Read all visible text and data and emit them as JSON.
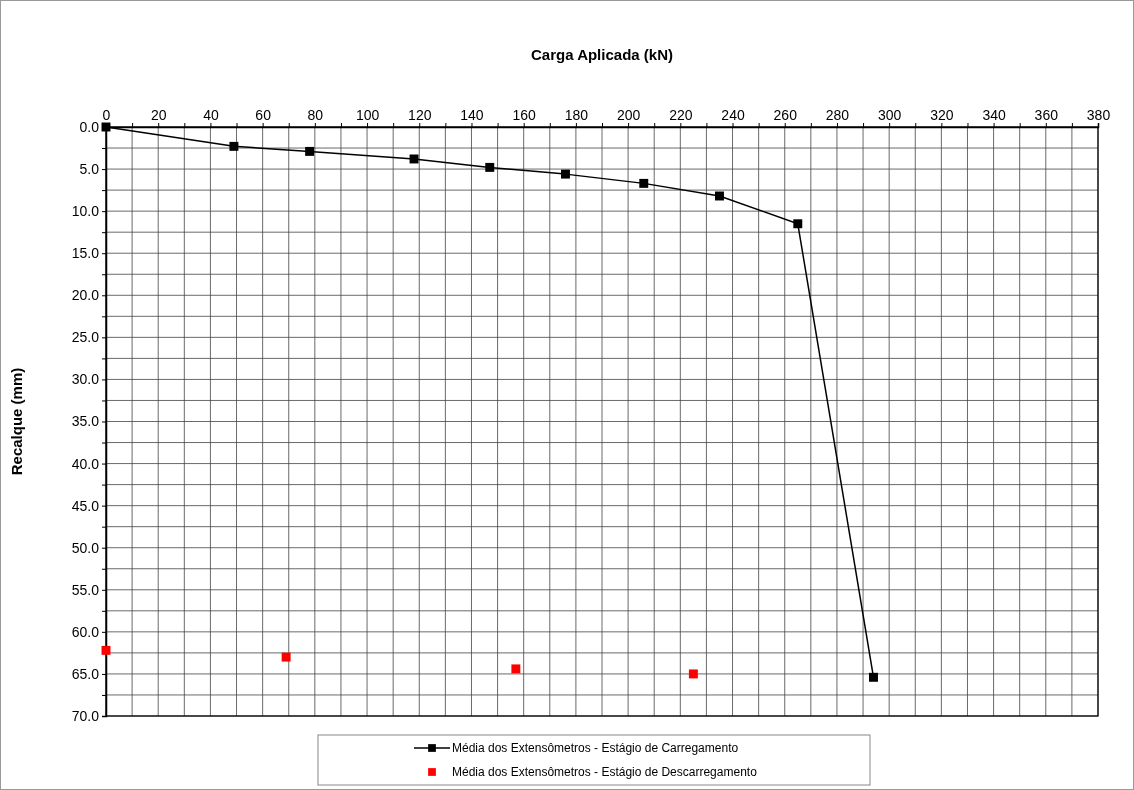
{
  "chart_data": {
    "type": "line",
    "title": "Carga Aplicada (kN)",
    "ylabel": "Recalque (mm)",
    "xlim": [
      0,
      380
    ],
    "ylim": [
      70,
      0
    ],
    "xticks": [
      0,
      {
        "value": 10,
        "label": null
      },
      20,
      {
        "value": 30,
        "label": null
      },
      40,
      {
        "value": 50,
        "label": null
      },
      60,
      {
        "value": 70,
        "label": null
      },
      80,
      {
        "value": 90,
        "label": null
      },
      100,
      {
        "value": 110,
        "label": null
      },
      120,
      {
        "value": 130,
        "label": null
      },
      140,
      {
        "value": 150,
        "label": null
      },
      160,
      {
        "value": 170,
        "label": null
      },
      180,
      {
        "value": 190,
        "label": null
      },
      200,
      {
        "value": 210,
        "label": null
      },
      220,
      {
        "value": 230,
        "label": null
      },
      240,
      {
        "value": 250,
        "label": null
      },
      260,
      {
        "value": 270,
        "label": null
      },
      280,
      {
        "value": 290,
        "label": null
      },
      300,
      {
        "value": 310,
        "label": null
      },
      320,
      {
        "value": 330,
        "label": null
      },
      340,
      {
        "value": 350,
        "label": null
      },
      360,
      {
        "value": 370,
        "label": null
      },
      380
    ],
    "yticks": [
      {
        "value": 0,
        "label": "0.0"
      },
      {
        "value": 2.5,
        "label": null
      },
      {
        "value": 5,
        "label": "5.0"
      },
      {
        "value": 7.5,
        "label": null
      },
      {
        "value": 10,
        "label": "10.0"
      },
      {
        "value": 12.5,
        "label": null
      },
      {
        "value": 15,
        "label": "15.0"
      },
      {
        "value": 17.5,
        "label": null
      },
      {
        "value": 20,
        "label": "20.0"
      },
      {
        "value": 22.5,
        "label": null
      },
      {
        "value": 25,
        "label": "25.0"
      },
      {
        "value": 27.5,
        "label": null
      },
      {
        "value": 30,
        "label": "30.0"
      },
      {
        "value": 32.5,
        "label": null
      },
      {
        "value": 35,
        "label": "35.0"
      },
      {
        "value": 37.5,
        "label": null
      },
      {
        "value": 40,
        "label": "40.0"
      },
      {
        "value": 42.5,
        "label": null
      },
      {
        "value": 45,
        "label": "45.0"
      },
      {
        "value": 47.5,
        "label": null
      },
      {
        "value": 50,
        "label": "50.0"
      },
      {
        "value": 52.5,
        "label": null
      },
      {
        "value": 55,
        "label": "55.0"
      },
      {
        "value": 57.5,
        "label": null
      },
      {
        "value": 60,
        "label": "60.0"
      },
      {
        "value": 62.5,
        "label": null
      },
      {
        "value": 65,
        "label": "65.0"
      },
      {
        "value": 67.5,
        "label": null
      },
      {
        "value": 70,
        "label": "70.0"
      }
    ],
    "grid": true,
    "legend": "bottom",
    "marker": "square",
    "line_style": "solid",
    "series": [
      {
        "name": "Média dos Extensômetros - Estágio de Carregamento",
        "color": "#000000",
        "x": [
          0,
          49,
          78,
          118,
          147,
          176,
          206,
          235,
          265,
          294
        ],
        "values": [
          0,
          2.3,
          2.9,
          3.8,
          4.8,
          5.6,
          6.7,
          8.2,
          11.5,
          65.4
        ]
      },
      {
        "name": "Média dos Extensômetros - Estágio de Descarregamento",
        "type": "scatter",
        "color": "#ff0000",
        "x": [
          0,
          69,
          157,
          225
        ],
        "values": [
          62.2,
          63.0,
          64.4,
          65.0
        ]
      }
    ]
  }
}
